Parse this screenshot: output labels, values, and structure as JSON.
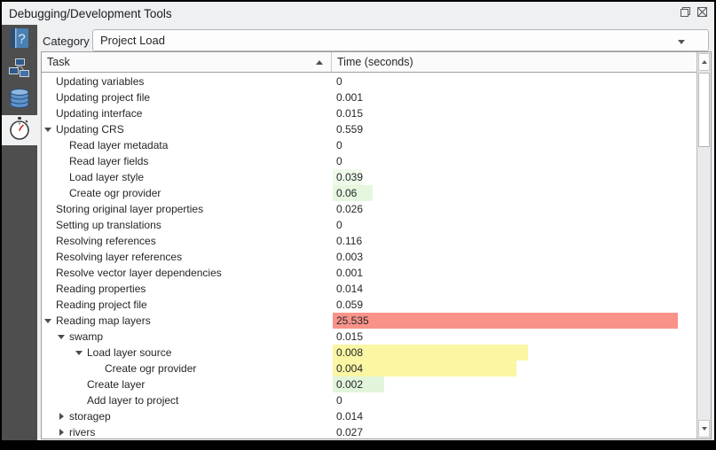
{
  "window": {
    "title": "Debugging/Development Tools",
    "buttons": [
      {
        "id": "float",
        "icon": "float-window-icon"
      },
      {
        "id": "close",
        "icon": "close-icon"
      }
    ]
  },
  "sidebar": {
    "items": [
      {
        "id": "help",
        "icon": "help-book-icon",
        "selected": false
      },
      {
        "id": "query-logger",
        "icon": "network-icon",
        "selected": false
      },
      {
        "id": "database",
        "icon": "database-icon",
        "selected": false
      },
      {
        "id": "profiler",
        "icon": "stopwatch-icon",
        "selected": true
      }
    ]
  },
  "category": {
    "label": "Category",
    "value": "Project Load"
  },
  "table": {
    "columns": [
      {
        "label": "Task",
        "sort": "asc"
      },
      {
        "label": "Time (seconds)",
        "sort": null
      }
    ],
    "rows": [
      {
        "depth": 1,
        "expander": "none",
        "label": "Updating variables",
        "value": "0"
      },
      {
        "depth": 1,
        "expander": "none",
        "label": "Updating project file",
        "value": "0.001"
      },
      {
        "depth": 1,
        "expander": "none",
        "label": "Updating interface",
        "value": "0.015"
      },
      {
        "depth": 1,
        "expander": "expanded",
        "label": "Updating CRS",
        "value": "0.559"
      },
      {
        "depth": 2,
        "expander": "none",
        "label": "Read layer metadata",
        "value": "0"
      },
      {
        "depth": 2,
        "expander": "none",
        "label": "Read layer fields",
        "value": "0"
      },
      {
        "depth": 2,
        "expander": "none",
        "label": "Load layer style",
        "value": "0.039",
        "bar": {
          "color": "#effaea",
          "pct": 8.0
        }
      },
      {
        "depth": 2,
        "expander": "none",
        "label": "Create ogr provider",
        "value": "0.06",
        "bar": {
          "color": "#e6f7e0",
          "pct": 11.0
        }
      },
      {
        "depth": 1,
        "expander": "none",
        "label": "Storing original layer properties",
        "value": "0.026"
      },
      {
        "depth": 1,
        "expander": "none",
        "label": "Setting up translations",
        "value": "0"
      },
      {
        "depth": 1,
        "expander": "none",
        "label": "Resolving references",
        "value": "0.116"
      },
      {
        "depth": 1,
        "expander": "none",
        "label": "Resolving layer references",
        "value": "0.003"
      },
      {
        "depth": 1,
        "expander": "none",
        "label": "Resolve vector layer dependencies",
        "value": "0.001"
      },
      {
        "depth": 1,
        "expander": "none",
        "label": "Reading properties",
        "value": "0.014"
      },
      {
        "depth": 1,
        "expander": "none",
        "label": "Reading project file",
        "value": "0.059"
      },
      {
        "depth": 1,
        "expander": "expanded",
        "label": "Reading map layers",
        "value": "25.535",
        "bar": {
          "color": "#f9938a",
          "pct": 94.6
        }
      },
      {
        "depth": 2,
        "expander": "expanded",
        "label": "swamp",
        "value": "0.015"
      },
      {
        "depth": 3,
        "expander": "expanded",
        "label": "Load layer source",
        "value": "0.008",
        "bar": {
          "color": "#faf6a3",
          "pct": 53.5
        }
      },
      {
        "depth": 4,
        "expander": "none",
        "label": "Create ogr provider",
        "value": "0.004",
        "bar": {
          "color": "#faf6a3",
          "pct": 50.4
        }
      },
      {
        "depth": 3,
        "expander": "none",
        "label": "Create layer",
        "value": "0.002",
        "bar": {
          "color": "#e2f5db",
          "pct": 14.1
        }
      },
      {
        "depth": 3,
        "expander": "none",
        "label": "Add layer to project",
        "value": "0"
      },
      {
        "depth": 2,
        "expander": "collapsed",
        "label": "storagep",
        "value": "0.014"
      },
      {
        "depth": 2,
        "expander": "collapsed",
        "label": "rivers",
        "value": "0.027"
      }
    ]
  },
  "colors": {
    "bar_red": "#f9938a",
    "bar_yellow": "#faf6a3",
    "bar_green": "#e2f5db",
    "sidebar_bg": "#4e4e4e",
    "panel_bg": "#eff0f1"
  }
}
